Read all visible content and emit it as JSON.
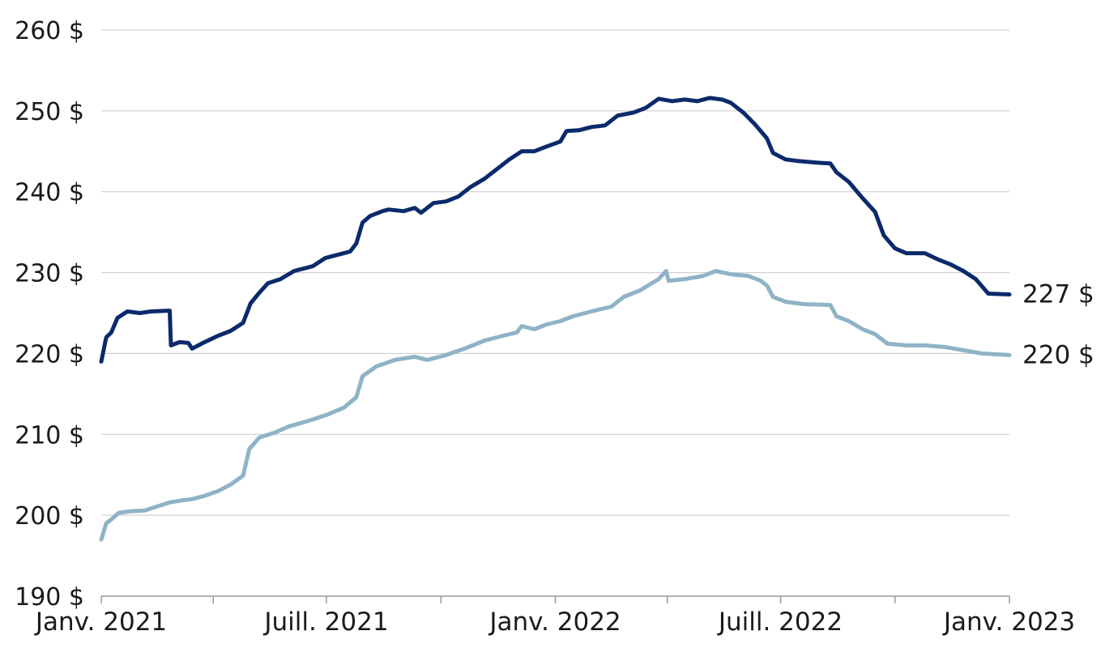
{
  "chart_data": {
    "type": "line",
    "y_ticks": [
      "190 $",
      "200 $",
      "210 $",
      "220 $",
      "230 $",
      "240 $",
      "250 $",
      "260 $"
    ],
    "ylim": [
      190,
      260
    ],
    "x_ticks": [
      "Janv. 2021",
      "Juill. 2021",
      "Janv. 2022",
      "Juill. 2022",
      "Janv. 2023"
    ],
    "x_tick_dates": [
      "2021-01-01",
      "2021-07-01",
      "2022-01-01",
      "2022-07-01",
      "2023-01-01"
    ],
    "xlim": [
      "2021-01-01",
      "2023-01-01"
    ],
    "grid": true,
    "series": [
      {
        "color": "#0b2a6b",
        "end_label": "227 $",
        "points": [
          [
            "2021-01-01",
            219.0
          ],
          [
            "2021-01-05",
            222.0
          ],
          [
            "2021-01-09",
            222.6
          ],
          [
            "2021-01-14",
            224.4
          ],
          [
            "2021-01-22",
            225.2
          ],
          [
            "2021-02-01",
            225.0
          ],
          [
            "2021-02-10",
            225.2
          ],
          [
            "2021-02-25",
            225.3
          ],
          [
            "2021-02-26",
            221.0
          ],
          [
            "2021-03-05",
            221.4
          ],
          [
            "2021-03-12",
            221.3
          ],
          [
            "2021-03-15",
            220.6
          ],
          [
            "2021-03-25",
            221.4
          ],
          [
            "2021-04-05",
            222.2
          ],
          [
            "2021-04-15",
            222.8
          ],
          [
            "2021-04-25",
            223.8
          ],
          [
            "2021-05-01",
            226.2
          ],
          [
            "2021-05-08",
            227.5
          ],
          [
            "2021-05-15",
            228.7
          ],
          [
            "2021-05-25",
            229.2
          ],
          [
            "2021-06-05",
            230.2
          ],
          [
            "2021-06-20",
            230.8
          ],
          [
            "2021-06-30",
            231.8
          ],
          [
            "2021-07-10",
            232.2
          ],
          [
            "2021-07-20",
            232.6
          ],
          [
            "2021-07-25",
            233.6
          ],
          [
            "2021-07-30",
            236.2
          ],
          [
            "2021-08-05",
            237.0
          ],
          [
            "2021-08-15",
            237.6
          ],
          [
            "2021-08-20",
            237.8
          ],
          [
            "2021-09-01",
            237.6
          ],
          [
            "2021-09-10",
            238.0
          ],
          [
            "2021-09-15",
            237.4
          ],
          [
            "2021-09-25",
            238.6
          ],
          [
            "2021-10-05",
            238.8
          ],
          [
            "2021-10-15",
            239.4
          ],
          [
            "2021-10-25",
            240.6
          ],
          [
            "2021-11-05",
            241.6
          ],
          [
            "2021-11-15",
            242.8
          ],
          [
            "2021-11-25",
            244.0
          ],
          [
            "2021-12-05",
            245.0
          ],
          [
            "2021-12-15",
            245.0
          ],
          [
            "2021-12-25",
            245.6
          ],
          [
            "2022-01-05",
            246.2
          ],
          [
            "2022-01-10",
            247.5
          ],
          [
            "2022-01-20",
            247.6
          ],
          [
            "2022-01-30",
            248.0
          ],
          [
            "2022-02-10",
            248.2
          ],
          [
            "2022-02-20",
            249.4
          ],
          [
            "2022-03-05",
            249.8
          ],
          [
            "2022-03-15",
            250.4
          ],
          [
            "2022-03-25",
            251.5
          ],
          [
            "2022-04-05",
            251.2
          ],
          [
            "2022-04-15",
            251.4
          ],
          [
            "2022-04-25",
            251.2
          ],
          [
            "2022-05-05",
            251.6
          ],
          [
            "2022-05-15",
            251.4
          ],
          [
            "2022-05-22",
            251.0
          ],
          [
            "2022-06-01",
            249.8
          ],
          [
            "2022-06-10",
            248.4
          ],
          [
            "2022-06-20",
            246.6
          ],
          [
            "2022-06-25",
            244.8
          ],
          [
            "2022-07-05",
            244.0
          ],
          [
            "2022-07-15",
            243.8
          ],
          [
            "2022-07-30",
            243.6
          ],
          [
            "2022-08-10",
            243.5
          ],
          [
            "2022-08-15",
            242.4
          ],
          [
            "2022-08-25",
            241.2
          ],
          [
            "2022-09-05",
            239.2
          ],
          [
            "2022-09-15",
            237.5
          ],
          [
            "2022-09-22",
            234.6
          ],
          [
            "2022-10-01",
            233.0
          ],
          [
            "2022-10-10",
            232.4
          ],
          [
            "2022-10-25",
            232.4
          ],
          [
            "2022-11-05",
            231.6
          ],
          [
            "2022-11-15",
            231.0
          ],
          [
            "2022-11-25",
            230.2
          ],
          [
            "2022-12-05",
            229.2
          ],
          [
            "2022-12-15",
            227.4
          ],
          [
            "2023-01-01",
            227.3
          ]
        ]
      },
      {
        "color": "#8fb3c6",
        "end_label": "220 $",
        "points": [
          [
            "2021-01-01",
            197.0
          ],
          [
            "2021-01-05",
            199.0
          ],
          [
            "2021-01-10",
            199.6
          ],
          [
            "2021-01-15",
            200.3
          ],
          [
            "2021-01-25",
            200.5
          ],
          [
            "2021-02-05",
            200.6
          ],
          [
            "2021-02-15",
            201.1
          ],
          [
            "2021-02-25",
            201.6
          ],
          [
            "2021-03-05",
            201.8
          ],
          [
            "2021-03-15",
            202.0
          ],
          [
            "2021-03-25",
            202.4
          ],
          [
            "2021-04-05",
            203.0
          ],
          [
            "2021-04-15",
            203.8
          ],
          [
            "2021-04-25",
            204.9
          ],
          [
            "2021-04-30",
            208.2
          ],
          [
            "2021-05-08",
            209.6
          ],
          [
            "2021-05-20",
            210.2
          ],
          [
            "2021-06-01",
            211.0
          ],
          [
            "2021-06-15",
            211.6
          ],
          [
            "2021-07-01",
            212.4
          ],
          [
            "2021-07-15",
            213.3
          ],
          [
            "2021-07-25",
            214.6
          ],
          [
            "2021-07-30",
            217.2
          ],
          [
            "2021-08-10",
            218.4
          ],
          [
            "2021-08-25",
            219.2
          ],
          [
            "2021-09-10",
            219.6
          ],
          [
            "2021-09-20",
            219.2
          ],
          [
            "2021-10-05",
            219.8
          ],
          [
            "2021-10-20",
            220.6
          ],
          [
            "2021-11-05",
            221.6
          ],
          [
            "2021-11-20",
            222.2
          ],
          [
            "2021-12-01",
            222.6
          ],
          [
            "2021-12-05",
            223.4
          ],
          [
            "2021-12-15",
            223.0
          ],
          [
            "2021-12-25",
            223.6
          ],
          [
            "2022-01-05",
            224.0
          ],
          [
            "2022-01-15",
            224.6
          ],
          [
            "2022-01-30",
            225.2
          ],
          [
            "2022-02-15",
            225.8
          ],
          [
            "2022-02-25",
            227.0
          ],
          [
            "2022-03-10",
            227.8
          ],
          [
            "2022-03-25",
            229.2
          ],
          [
            "2022-03-31",
            230.2
          ],
          [
            "2022-04-02",
            229.0
          ],
          [
            "2022-04-15",
            229.2
          ],
          [
            "2022-04-30",
            229.6
          ],
          [
            "2022-05-10",
            230.2
          ],
          [
            "2022-05-22",
            229.8
          ],
          [
            "2022-06-05",
            229.6
          ],
          [
            "2022-06-15",
            229.0
          ],
          [
            "2022-06-20",
            228.4
          ],
          [
            "2022-06-25",
            227.0
          ],
          [
            "2022-07-05",
            226.4
          ],
          [
            "2022-07-20",
            226.1
          ],
          [
            "2022-08-10",
            226.0
          ],
          [
            "2022-08-15",
            224.6
          ],
          [
            "2022-08-25",
            224.0
          ],
          [
            "2022-09-05",
            223.0
          ],
          [
            "2022-09-15",
            222.4
          ],
          [
            "2022-09-25",
            221.2
          ],
          [
            "2022-10-10",
            221.0
          ],
          [
            "2022-10-25",
            221.0
          ],
          [
            "2022-11-10",
            220.8
          ],
          [
            "2022-11-25",
            220.4
          ],
          [
            "2022-12-10",
            220.0
          ],
          [
            "2023-01-01",
            219.8
          ]
        ]
      }
    ]
  }
}
